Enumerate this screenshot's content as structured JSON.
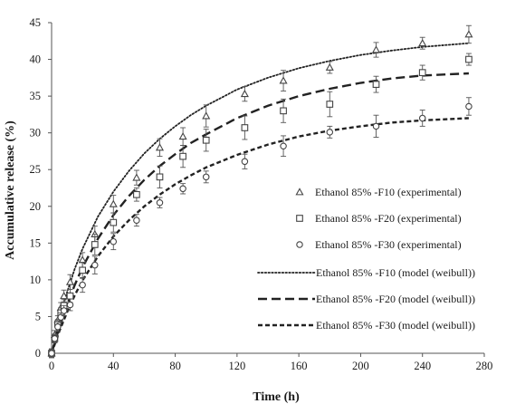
{
  "chart_data": {
    "type": "scatter",
    "xlabel": "Time (h)",
    "ylabel": "Accumulative release (%)",
    "xlim": [
      0,
      280
    ],
    "ylim": [
      0,
      45
    ],
    "x_ticks": [
      0,
      40,
      80,
      120,
      160,
      200,
      240,
      280
    ],
    "y_ticks": [
      0,
      5,
      10,
      15,
      20,
      25,
      30,
      35,
      40,
      45
    ],
    "grid": false,
    "legend_position": "bottom-right",
    "series": [
      {
        "name": "Ethanol 85% -F10 (experimental)",
        "kind": "experimental",
        "marker": "triangle",
        "x": [
          0,
          2,
          4,
          6,
          8,
          12,
          20,
          28,
          40,
          55,
          70,
          85,
          100,
          125,
          150,
          180,
          210,
          240,
          270
        ],
        "y": [
          0,
          2.5,
          4.5,
          6.2,
          7.8,
          9.7,
          12.7,
          16.2,
          20.3,
          23.9,
          28.0,
          29.5,
          32.3,
          35.3,
          37.1,
          38.9,
          41.3,
          42.2,
          43.4
        ],
        "error": [
          0.6,
          0.6,
          0.6,
          0.7,
          0.8,
          1.0,
          1.0,
          1.1,
          1.2,
          1.0,
          1.2,
          1.2,
          1.5,
          1.0,
          1.4,
          0.8,
          1.0,
          0.8,
          1.2
        ]
      },
      {
        "name": "Ethanol 85% -F20 (experimental)",
        "kind": "experimental",
        "marker": "square",
        "x": [
          0,
          2,
          4,
          6,
          8,
          12,
          20,
          28,
          40,
          55,
          70,
          85,
          100,
          125,
          150,
          180,
          210,
          240,
          270
        ],
        "y": [
          0,
          2.0,
          4.0,
          5.5,
          6.5,
          7.8,
          11.3,
          14.8,
          17.8,
          21.6,
          24.0,
          26.8,
          29.0,
          30.7,
          33.0,
          33.9,
          36.6,
          38.2,
          40.0
        ],
        "error": [
          0.6,
          0.6,
          0.6,
          0.7,
          0.8,
          0.9,
          1.1,
          1.4,
          1.3,
          0.9,
          1.5,
          1.5,
          1.5,
          1.6,
          1.6,
          1.7,
          1.1,
          1.0,
          0.8
        ]
      },
      {
        "name": "Ethanol 85% -F30 (experimental)",
        "kind": "experimental",
        "marker": "circle",
        "x": [
          0,
          2,
          4,
          6,
          8,
          12,
          20,
          28,
          40,
          55,
          70,
          85,
          100,
          125,
          150,
          180,
          210,
          240,
          270
        ],
        "y": [
          0,
          2.0,
          3.6,
          4.9,
          5.8,
          6.6,
          9.3,
          12.0,
          15.2,
          18.1,
          20.5,
          22.4,
          24.0,
          26.1,
          28.2,
          30.1,
          30.9,
          32.0,
          33.6
        ],
        "error": [
          0.5,
          0.5,
          0.6,
          0.6,
          0.7,
          0.8,
          1.0,
          1.2,
          1.1,
          0.8,
          0.7,
          0.7,
          0.8,
          1.0,
          1.4,
          0.8,
          1.5,
          1.1,
          1.2
        ]
      },
      {
        "name": "Ethanol 85% -F10 (model (weibull))",
        "kind": "model",
        "dash": "dotted",
        "x": [
          0,
          5,
          10,
          15,
          20,
          30,
          40,
          50,
          60,
          70,
          80,
          90,
          100,
          120,
          140,
          160,
          180,
          200,
          220,
          240,
          270
        ],
        "y": [
          0,
          4.5,
          8.3,
          11.5,
          14.2,
          18.6,
          22.0,
          24.8,
          27.2,
          29.2,
          30.9,
          32.4,
          33.7,
          35.9,
          37.5,
          38.8,
          39.8,
          40.6,
          41.2,
          41.7,
          42.2
        ]
      },
      {
        "name": "Ethanol 85% -F20 (model (weibull))",
        "kind": "model",
        "dash": "long-dash",
        "x": [
          0,
          5,
          10,
          15,
          20,
          30,
          40,
          50,
          60,
          70,
          80,
          90,
          100,
          120,
          140,
          160,
          180,
          200,
          220,
          240,
          270
        ],
        "y": [
          0,
          3.5,
          6.6,
          9.3,
          11.7,
          15.6,
          18.8,
          21.4,
          23.6,
          25.5,
          27.1,
          28.6,
          29.8,
          32.0,
          33.7,
          35.0,
          36.0,
          36.8,
          37.4,
          37.8,
          38.1
        ]
      },
      {
        "name": "Ethanol 85% -F30 (model (weibull))",
        "kind": "model",
        "dash": "short-dash",
        "x": [
          0,
          5,
          10,
          15,
          20,
          30,
          40,
          50,
          60,
          70,
          80,
          90,
          100,
          120,
          140,
          160,
          180,
          200,
          220,
          240,
          270
        ],
        "y": [
          0,
          3.0,
          5.6,
          7.9,
          9.9,
          13.2,
          15.9,
          18.1,
          20.0,
          21.6,
          23.0,
          24.2,
          25.3,
          27.0,
          28.4,
          29.5,
          30.3,
          30.9,
          31.4,
          31.7,
          32.0
        ]
      }
    ]
  }
}
